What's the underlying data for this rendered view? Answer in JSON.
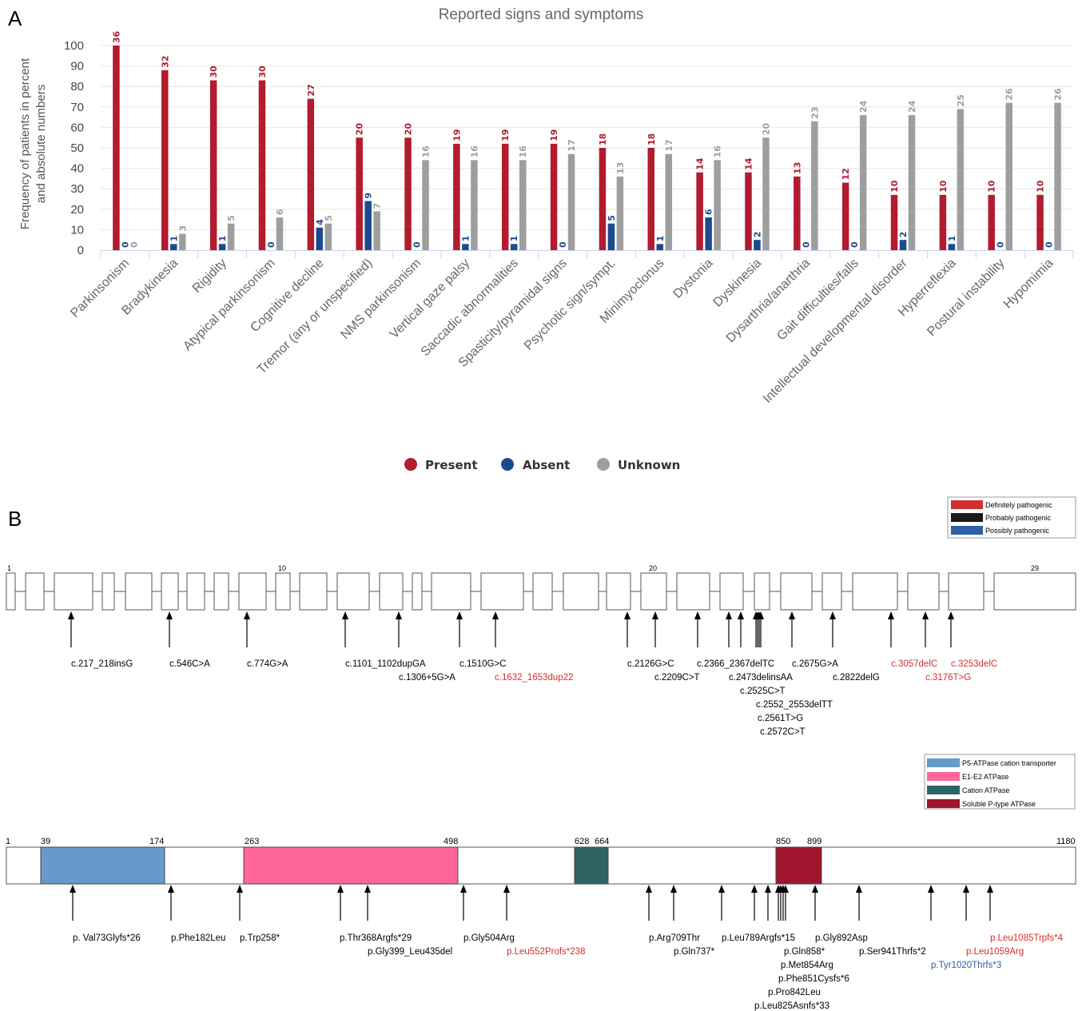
{
  "panel_a": {
    "letter": "A",
    "legend": [
      {
        "label": "Present",
        "color": "#b31b2e"
      },
      {
        "label": "Absent",
        "color": "#1c4b8c"
      },
      {
        "label": "Unknown",
        "color": "#9e9e9e"
      }
    ]
  },
  "chart_data": {
    "type": "bar",
    "title": "Reported signs and symptoms",
    "ylabel_lines": [
      "Frequency of patients in percent",
      "and absolute numbers"
    ],
    "ylim": [
      0,
      100
    ],
    "yticks": [
      0,
      10,
      20,
      30,
      40,
      50,
      60,
      70,
      80,
      90,
      100
    ],
    "grid": true,
    "legend_position": "bottom",
    "categories": [
      "Parkinsonism",
      "Bradykinesia",
      "Rigidity",
      "Atypical parkinsonism",
      "Cognitive decline",
      "Tremor (any or unspecified)",
      "NMS parkinsonism",
      "Vertical gaze palsy",
      "Saccadic abnormalities",
      "Spasticity/pyramidal signs",
      "Psychotic sign/sympt.",
      "Minimyoclonus",
      "Dystonia",
      "Dyskinesia",
      "Dysarthria/anarthria",
      "Gait difficulties/falls",
      "Intellectual developmental disorder",
      "Hyperreflexia",
      "Postural instability",
      "Hypomimia"
    ],
    "series": [
      {
        "name": "Present",
        "color": "#b31b2e",
        "values": [
          100,
          88,
          83,
          83,
          74,
          55,
          55,
          52,
          52,
          52,
          50,
          50,
          38,
          38,
          36,
          33,
          27,
          27,
          27,
          27
        ],
        "labels": [
          "36",
          "32",
          "30",
          "30",
          "27",
          "20",
          "20",
          "19",
          "19",
          "19",
          "18",
          "18",
          "14",
          "14",
          "13",
          "12",
          "10",
          "10",
          "10",
          "10"
        ]
      },
      {
        "name": "Absent",
        "color": "#1c4b8c",
        "values": [
          0,
          3,
          3,
          0,
          11,
          24,
          0,
          3,
          3,
          0,
          13,
          3,
          16,
          5,
          0,
          0,
          5,
          3,
          0,
          0
        ],
        "labels": [
          "0",
          "1",
          "1",
          "0",
          "4",
          "9",
          "0",
          "1",
          "1",
          "0",
          "5",
          "1",
          "6",
          "2",
          "0",
          "0",
          "2",
          "1",
          "0",
          "0"
        ]
      },
      {
        "name": "Unknown",
        "color": "#9e9e9e",
        "values": [
          0,
          8,
          13,
          16,
          13,
          19,
          44,
          44,
          44,
          47,
          36,
          47,
          44,
          55,
          63,
          66,
          66,
          69,
          72,
          72
        ],
        "labels": [
          "0",
          "3",
          "5",
          "6",
          "5",
          "7",
          "16",
          "16",
          "16",
          "17",
          "13",
          "17",
          "16",
          "20",
          "23",
          "24",
          "24",
          "25",
          "26",
          "26"
        ]
      }
    ]
  },
  "panel_b": {
    "letter": "B",
    "pathogenicity_legend": [
      {
        "label": "Definitely pathogenic",
        "color": "#d32f2f"
      },
      {
        "label": "Probably pathogenic",
        "color": "#1a1a1a"
      },
      {
        "label": "Possibly pathogenic",
        "color": "#2f5fa6"
      }
    ],
    "exon_numbers": [
      "1",
      "10",
      "20",
      "29"
    ],
    "cdna_variants": [
      {
        "text": "c.217_218insG",
        "cls": "definite-black"
      },
      {
        "text": "c.546C>A",
        "cls": "black"
      },
      {
        "text": "c.774G>A",
        "cls": "black"
      },
      {
        "text": "c.1101_1102dupGA",
        "cls": "black"
      },
      {
        "text": "c.1306+5G>A",
        "cls": "black"
      },
      {
        "text": "c.1510G>C",
        "cls": "black"
      },
      {
        "text": "c.1632_1653dup22",
        "cls": "red"
      },
      {
        "text": "c.2126G>C",
        "cls": "black"
      },
      {
        "text": "c.2209C>T",
        "cls": "black"
      },
      {
        "text": "c.2366_2367delTC",
        "cls": "black"
      },
      {
        "text": "c.2473delinsAA",
        "cls": "black"
      },
      {
        "text": "c.2525C>T",
        "cls": "black"
      },
      {
        "text": "c.2552_2553delTT",
        "cls": "black"
      },
      {
        "text": "c.2561T>G",
        "cls": "black"
      },
      {
        "text": "c.2572C>T",
        "cls": "black"
      },
      {
        "text": "c.2675G>A",
        "cls": "black"
      },
      {
        "text": "c.2822delG",
        "cls": "black"
      },
      {
        "text": "c.3057delC",
        "cls": "red"
      },
      {
        "text": "c.3253delC",
        "cls": "red"
      },
      {
        "text": "c.3176T>G",
        "cls": "red"
      }
    ],
    "domain_legend": [
      {
        "label": "P5-ATPase cation transporter",
        "color": "#6699cc"
      },
      {
        "label": "E1-E2 ATPase",
        "color": "#ff6699"
      },
      {
        "label": "Cation ATPase",
        "color": "#2e6464"
      },
      {
        "label": "Soluble P-type ATPase",
        "color": "#a0152e"
      }
    ],
    "protein_positions": [
      "1",
      "39",
      "174",
      "263",
      "498",
      "628",
      "664",
      "850",
      "899",
      "1180"
    ],
    "protein_variants": [
      {
        "text": "p. Val73Glyfs*26",
        "cls": "black"
      },
      {
        "text": "p.Phe182Leu",
        "cls": "black"
      },
      {
        "text": "p.Trp258*",
        "cls": "black"
      },
      {
        "text": "p.Thr368Argfs*29",
        "cls": "black"
      },
      {
        "text": "p.Gly399_Leu435del",
        "cls": "black"
      },
      {
        "text": "p.Gly504Arg",
        "cls": "black"
      },
      {
        "text": "p.Leu552Profs*238",
        "cls": "red"
      },
      {
        "text": "p.Arg709Thr",
        "cls": "black"
      },
      {
        "text": "p.Gln737*",
        "cls": "black"
      },
      {
        "text": "p.Leu789Argfs*15",
        "cls": "black"
      },
      {
        "text": "p.Gln858*",
        "cls": "black"
      },
      {
        "text": "p.Met854Arg",
        "cls": "black"
      },
      {
        "text": "p.Phe851Cysfs*6",
        "cls": "black"
      },
      {
        "text": "p.Pro842Leu",
        "cls": "black"
      },
      {
        "text": "p.Leu825Asnfs*33",
        "cls": "black"
      },
      {
        "text": "p.Gly892Asp",
        "cls": "black"
      },
      {
        "text": "p.Ser941Thrfs*2",
        "cls": "black"
      },
      {
        "text": "p.Leu1085Trpfs*4",
        "cls": "red"
      },
      {
        "text": "p.Leu1059Arg",
        "cls": "red"
      },
      {
        "text": "p.Tyr1020Thrfs*3",
        "cls": "blue"
      }
    ]
  }
}
